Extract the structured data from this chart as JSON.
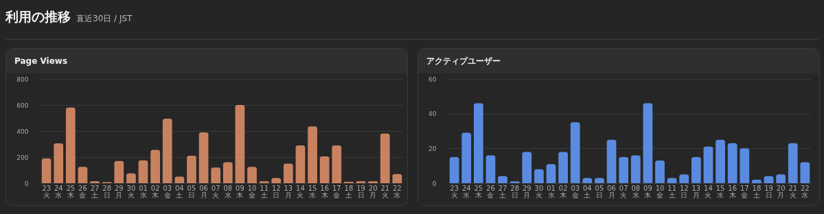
{
  "chart_data": [
    {
      "type": "bar",
      "title": "Page Views",
      "annotations": [
        "利用の推移",
        "直近30日 / JST"
      ],
      "categories": [
        "23\n火",
        "24\n水",
        "25\n木",
        "26\n金",
        "27\n土",
        "28\n日",
        "29\n月",
        "30\n火",
        "01\n水",
        "02\n木",
        "03\n金",
        "04\n土",
        "05\n日",
        "06\n月",
        "07\n火",
        "08\n水",
        "09\n木",
        "10\n金",
        "11\n土",
        "12\n日",
        "13\n月",
        "14\n火",
        "15\n水",
        "16\n木",
        "17\n金",
        "18\n土",
        "19\n日",
        "20\n月",
        "21\n火",
        "22\n水"
      ],
      "series": [
        {
          "color": "#c98260",
          "values": [
            190,
            305,
            580,
            125,
            15,
            8,
            170,
            75,
            175,
            255,
            495,
            50,
            210,
            390,
            120,
            160,
            600,
            125,
            15,
            40,
            150,
            290,
            435,
            205,
            290,
            10,
            15,
            15,
            380,
            70
          ]
        }
      ],
      "ylim": [
        0,
        800
      ],
      "yticks": [
        0,
        200,
        400,
        600,
        800
      ],
      "grid": "y"
    },
    {
      "type": "bar",
      "title": "アクティブユーザー",
      "categories": [
        "23\n火",
        "24\n水",
        "25\n木",
        "26\n金",
        "27\n土",
        "28\n日",
        "29\n月",
        "30\n火",
        "01\n水",
        "02\n木",
        "03\n金",
        "04\n土",
        "05\n日",
        "06\n月",
        "07\n火",
        "08\n水",
        "09\n木",
        "10\n金",
        "11\n土",
        "12\n日",
        "13\n月",
        "14\n火",
        "15\n水",
        "16\n木",
        "17\n金",
        "18\n土",
        "19\n日",
        "20\n月",
        "21\n火",
        "22\n水"
      ],
      "series": [
        {
          "color": "#5a8be0",
          "values": [
            15,
            29,
            46,
            16,
            4,
            1,
            18,
            8,
            11,
            18,
            35,
            3,
            3,
            25,
            15,
            16,
            46,
            13,
            3,
            5,
            15,
            21,
            25,
            23,
            20,
            2,
            4,
            5,
            23,
            12
          ]
        }
      ],
      "ylim": [
        0,
        60
      ],
      "yticks": [
        0,
        20,
        40,
        60
      ],
      "grid": "y"
    }
  ]
}
